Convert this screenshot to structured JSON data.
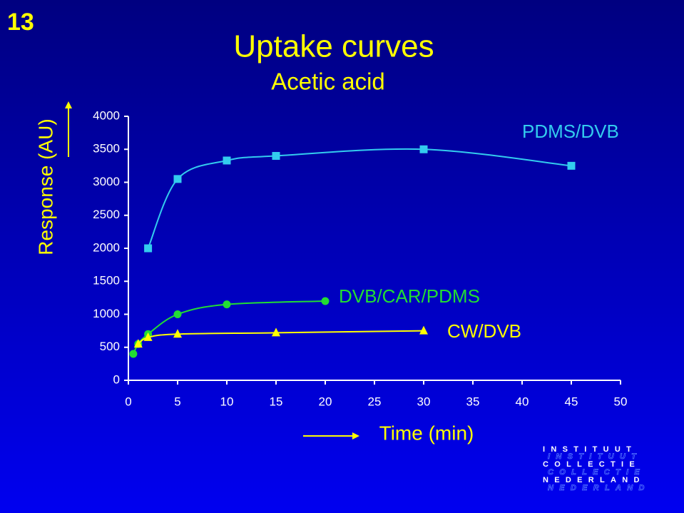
{
  "slide_number": "13",
  "chart_data": {
    "type": "line",
    "title": "Uptake curves",
    "subtitle": "Acetic acid",
    "x_label": "Time (min)",
    "y_label": "Response (AU)",
    "xlim": [
      0,
      50
    ],
    "xticks": [
      0,
      5,
      10,
      15,
      20,
      25,
      30,
      35,
      40,
      45,
      50
    ],
    "ylim": [
      0,
      4000
    ],
    "yticks": [
      0,
      500,
      1000,
      1500,
      2000,
      2500,
      3000,
      3500,
      4000
    ],
    "smooth": true,
    "series": [
      {
        "name": "PDMS/DVB",
        "color": "#33ccee",
        "marker": "square",
        "x": [
          2,
          5,
          10,
          15,
          30,
          45
        ],
        "values": [
          2000,
          3050,
          3330,
          3400,
          3500,
          3250
        ]
      },
      {
        "name": "DVB/CAR/PDMS",
        "color": "#22dd33",
        "marker": "circle",
        "x": [
          0.5,
          1,
          2,
          5,
          10,
          20
        ],
        "values": [
          400,
          550,
          700,
          1000,
          1150,
          1200
        ]
      },
      {
        "name": "CW/DVB",
        "color": "#ffff00",
        "marker": "triangle",
        "x": [
          1,
          2,
          5,
          15,
          30
        ],
        "values": [
          550,
          650,
          700,
          720,
          750
        ]
      }
    ]
  },
  "logo": [
    "INSTITUUT",
    "COLLECTIE",
    "NEDERLAND"
  ]
}
